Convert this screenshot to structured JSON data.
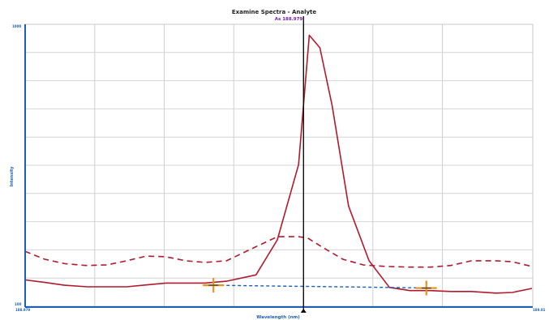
{
  "chart_data": {
    "type": "line",
    "title": "Examine Spectra - Analyte",
    "subtitle": "As 188.979",
    "xlabel": "Wavelength (nm)",
    "ylabel": "Intensity",
    "x_tick_labels": {
      "min": "188.979",
      "max": "189.01"
    },
    "y_tick_labels": {
      "min": "100",
      "max": "1000"
    },
    "xlim": [
      188.948,
      189.01
    ],
    "ylim": [
      100,
      1000
    ],
    "grid": true,
    "marker_x": 188.982,
    "series": [
      {
        "style": "solid",
        "color": "#b01a2c",
        "x": [
          188.948,
          188.9504,
          188.9528,
          188.9556,
          188.958,
          188.9604,
          188.9628,
          188.9652,
          188.9676,
          188.97,
          188.9726,
          188.9762,
          188.9788,
          188.9814,
          188.9827,
          188.984,
          188.9855,
          188.9875,
          188.99,
          188.9925,
          188.995,
          188.9975,
          189.0,
          189.0025,
          189.0055,
          189.0075,
          189.0099
        ],
        "values": [
          184,
          176,
          167,
          162,
          162,
          162,
          168,
          174,
          174,
          174,
          180,
          200,
          312,
          552,
          965,
          925,
          740,
          420,
          245,
          160,
          150,
          150,
          147,
          147,
          142,
          144,
          157
        ]
      },
      {
        "style": "dashed",
        "color": "#b01a2c",
        "x": [
          188.948,
          188.9504,
          188.9528,
          188.9554,
          188.958,
          188.9604,
          188.9628,
          188.9652,
          188.9676,
          188.97,
          188.9726,
          188.9762,
          188.9788,
          188.9814,
          188.9825,
          188.9842,
          188.9868,
          188.9893,
          188.992,
          188.995,
          188.9975,
          189.0,
          189.0025,
          189.0055,
          189.0075,
          189.0099
        ],
        "values": [
          275,
          250,
          236,
          230,
          232,
          245,
          260,
          258,
          245,
          240,
          245,
          290,
          322,
          322,
          318,
          290,
          250,
          232,
          227,
          225,
          225,
          230,
          245,
          245,
          242,
          227
        ]
      },
      {
        "style": "dashed",
        "color": "#1a5fb8",
        "x": [
          188.9712,
          188.9742,
          188.9772,
          188.9802,
          188.9832,
          188.9862,
          188.9892,
          188.9922,
          188.9952,
          188.9982
        ],
        "values": [
          167,
          166,
          165,
          164,
          163,
          162,
          161,
          160,
          159,
          158
        ]
      }
    ],
    "background_markers": [
      {
        "x": 188.971,
        "value": 167
      },
      {
        "x": 188.997,
        "value": 158
      }
    ]
  }
}
